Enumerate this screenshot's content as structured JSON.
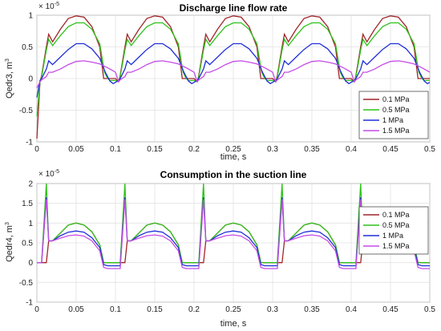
{
  "chart_data": [
    {
      "type": "line",
      "title": "Discharge line flow rate",
      "xlabel": "time, s",
      "ylabel": "Qedr3, m",
      "ylabel_sup": "3",
      "exponent_base": "× 10",
      "exponent_power": "-5",
      "xlim": [
        0,
        0.5
      ],
      "ylim": [
        -1,
        1
      ],
      "xticks": [
        "0",
        "0.05",
        "0.1",
        "0.15",
        "0.2",
        "0.25",
        "0.3",
        "0.35",
        "0.4",
        "0.45",
        "0.5"
      ],
      "yticks": [
        "1",
        "0.5",
        "0",
        "-0.5",
        "-1"
      ],
      "grid": true,
      "legend_position": "lower-right",
      "period": 0.1,
      "series": [
        {
          "name": "0.1 MPa",
          "color": "#a0252a",
          "x": [
            0,
            0.004,
            0.006,
            0.012,
            0.015,
            0.02,
            0.03,
            0.04,
            0.05,
            0.06,
            0.07,
            0.08,
            0.085,
            0.088,
            0.095,
            0.1
          ],
          "y": [
            -0.95,
            -0.05,
            0.05,
            0.5,
            0.7,
            0.58,
            0.78,
            0.95,
            0.99,
            0.97,
            0.82,
            0.5,
            0.0,
            0.0,
            0.0,
            0.0
          ]
        },
        {
          "name": "0.5 MPa",
          "color": "#2ec21a",
          "x": [
            0,
            0.004,
            0.006,
            0.012,
            0.015,
            0.02,
            0.03,
            0.04,
            0.05,
            0.06,
            0.07,
            0.08,
            0.086,
            0.09,
            0.093,
            0.1
          ],
          "y": [
            -0.6,
            -0.05,
            0.03,
            0.45,
            0.62,
            0.52,
            0.68,
            0.82,
            0.88,
            0.88,
            0.78,
            0.55,
            0.1,
            0.0,
            -0.03,
            -0.03
          ]
        },
        {
          "name": "1 MPa",
          "color": "#1f2fd8",
          "x": [
            0,
            0.004,
            0.006,
            0.012,
            0.015,
            0.02,
            0.03,
            0.04,
            0.05,
            0.06,
            0.07,
            0.08,
            0.087,
            0.093,
            0.097,
            0.1
          ],
          "y": [
            -0.3,
            -0.03,
            0.0,
            0.15,
            0.28,
            0.22,
            0.34,
            0.46,
            0.55,
            0.55,
            0.47,
            0.32,
            0.1,
            -0.04,
            -0.08,
            -0.06
          ]
        },
        {
          "name": "1.5 MPa",
          "color": "#c44ce6",
          "x": [
            0,
            0.004,
            0.006,
            0.012,
            0.015,
            0.02,
            0.03,
            0.04,
            0.05,
            0.06,
            0.07,
            0.08,
            0.09,
            0.1
          ],
          "y": [
            -0.15,
            -0.05,
            -0.02,
            0.03,
            0.1,
            0.1,
            0.15,
            0.22,
            0.27,
            0.28,
            0.26,
            0.23,
            0.17,
            0.1
          ]
        }
      ]
    },
    {
      "type": "line",
      "title": "Consumption in the suction line",
      "xlabel": "time, s",
      "ylabel": "Qedr4, m",
      "ylabel_sup": "3",
      "exponent_base": "× 10",
      "exponent_power": "-5",
      "xlim": [
        0,
        0.5
      ],
      "ylim": [
        -1,
        2
      ],
      "xticks": [
        "0",
        "0.05",
        "0.1",
        "0.15",
        "0.2",
        "0.25",
        "0.3",
        "0.35",
        "0.4",
        "0.45",
        "0.5"
      ],
      "yticks": [
        "2",
        "1.5",
        "1",
        "0.5",
        "0",
        "-0.5",
        "-1"
      ],
      "grid": true,
      "legend_position": "upper-right",
      "period": 0.1,
      "series": [
        {
          "name": "0.1 MPa",
          "color": "#a0252a",
          "x": [
            0,
            0.004,
            0.006,
            0.012,
            0.015,
            0.02,
            0.03,
            0.04,
            0.05,
            0.06,
            0.07,
            0.08,
            0.085,
            0.09,
            0.1
          ],
          "y": [
            0.0,
            0.0,
            0.0,
            0.0,
            0.55,
            0.55,
            0.75,
            0.95,
            1.0,
            0.95,
            0.78,
            0.45,
            0.0,
            0.0,
            0.0
          ]
        },
        {
          "name": "0.5 MPa",
          "color": "#2ec21a",
          "x": [
            0,
            0.004,
            0.006,
            0.012,
            0.015,
            0.02,
            0.03,
            0.04,
            0.05,
            0.06,
            0.07,
            0.08,
            0.085,
            0.09,
            0.1
          ],
          "y": [
            0.0,
            0.0,
            0.0,
            2.0,
            0.55,
            0.55,
            0.75,
            0.95,
            1.0,
            0.95,
            0.78,
            0.45,
            0.0,
            0.0,
            0.0
          ]
        },
        {
          "name": "1 MPa",
          "color": "#1f2fd8",
          "x": [
            0,
            0.004,
            0.006,
            0.012,
            0.015,
            0.02,
            0.03,
            0.04,
            0.05,
            0.06,
            0.07,
            0.08,
            0.085,
            0.09,
            0.1
          ],
          "y": [
            0.0,
            0.0,
            0.0,
            1.65,
            0.55,
            0.55,
            0.68,
            0.77,
            0.8,
            0.77,
            0.63,
            0.38,
            -0.05,
            -0.08,
            -0.08
          ]
        },
        {
          "name": "1.5 MPa",
          "color": "#c44ce6",
          "x": [
            0,
            0.004,
            0.006,
            0.012,
            0.015,
            0.02,
            0.03,
            0.04,
            0.05,
            0.06,
            0.07,
            0.08,
            0.085,
            0.09,
            0.1
          ],
          "y": [
            0.0,
            0.0,
            0.0,
            1.6,
            0.55,
            0.55,
            0.62,
            0.68,
            0.7,
            0.67,
            0.55,
            0.3,
            -0.12,
            -0.15,
            -0.15
          ]
        }
      ]
    }
  ]
}
